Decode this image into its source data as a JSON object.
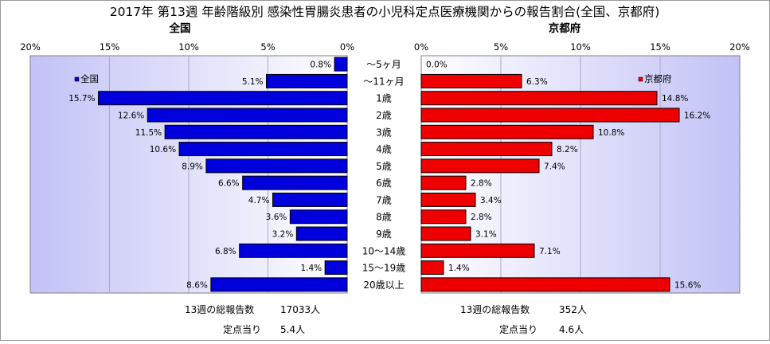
{
  "title": "2017年 第13週 年齢階級別 感染性胃腸炎患者の小児科定点医療機関からの報告割合(全国、京都府)",
  "chart_data": {
    "type": "bar",
    "orientation": "horizontal",
    "categories": [
      "～5ヶ月",
      "～11ヶ月",
      "1歳",
      "2歳",
      "3歳",
      "4歳",
      "5歳",
      "6歳",
      "7歳",
      "8歳",
      "9歳",
      "10～14歳",
      "15～19歳",
      "20歳以上"
    ],
    "panels": [
      {
        "name": "全国",
        "legend": "全国",
        "color": "#0000dd",
        "xlim": [
          0,
          20
        ],
        "ticks": [
          "20%",
          "15%",
          "10%",
          "5%",
          "0%"
        ],
        "values": [
          0.8,
          5.1,
          15.7,
          12.6,
          11.5,
          10.6,
          8.9,
          6.6,
          4.7,
          3.6,
          3.2,
          6.8,
          1.4,
          8.6
        ],
        "labels": [
          "0.8%",
          "5.1%",
          "15.7%",
          "12.6%",
          "11.5%",
          "10.6%",
          "8.9%",
          "6.6%",
          "4.7%",
          "3.6%",
          "3.2%",
          "6.8%",
          "1.4%",
          "8.6%"
        ],
        "footer": [
          {
            "label": "13週の総報告数",
            "value": "17033人"
          },
          {
            "label": "定点当り",
            "value": "5.4人"
          }
        ]
      },
      {
        "name": "京都府",
        "legend": "京都府",
        "color": "#ee0000",
        "xlim": [
          0,
          20
        ],
        "ticks": [
          "0%",
          "5%",
          "10%",
          "15%",
          "20%"
        ],
        "values": [
          0.0,
          6.3,
          14.8,
          16.2,
          10.8,
          8.2,
          7.4,
          2.8,
          3.4,
          2.8,
          3.1,
          7.1,
          1.4,
          15.6
        ],
        "labels": [
          "0.0%",
          "6.3%",
          "14.8%",
          "16.2%",
          "10.8%",
          "8.2%",
          "7.4%",
          "2.8%",
          "3.4%",
          "2.8%",
          "3.1%",
          "7.1%",
          "1.4%",
          "15.6%"
        ],
        "footer": [
          {
            "label": "13週の総報告数",
            "value": "352人"
          },
          {
            "label": "定点当り",
            "value": "4.6人"
          }
        ]
      }
    ],
    "grid": true
  }
}
